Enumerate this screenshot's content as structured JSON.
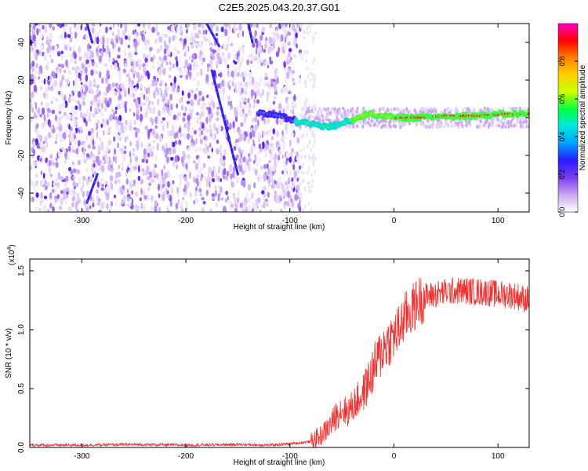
{
  "title": "C2E5.2025.043.20.37.G01",
  "chart_data": [
    {
      "type": "heatmap",
      "xlabel": "Height of straight line (km)",
      "ylabel": "Frequency (Hz)",
      "xlim": [
        -350,
        130
      ],
      "ylim": [
        -50,
        50
      ],
      "xticks": [
        -300,
        -200,
        -100,
        0,
        100
      ],
      "yticks": [
        -40,
        -20,
        0,
        20,
        40
      ],
      "colorbar": {
        "label": "Normalized spectral amplitude",
        "range": [
          0.0,
          1.0
        ],
        "ticks": [
          "0.0",
          "0.2",
          "0.4",
          "0.6",
          "0.8"
        ],
        "tick_values": [
          0.0,
          0.2,
          0.4,
          0.6,
          0.8
        ],
        "colors": [
          "#ffffff",
          "#c9a8f0",
          "#7a3cf0",
          "#2a1aff",
          "#00a0ff",
          "#00e8e0",
          "#00ff40",
          "#c8ff00",
          "#ffd000",
          "#ff8000",
          "#ff0000",
          "#ff00c0"
        ]
      },
      "signal_track": {
        "description_free": true,
        "x": [
          -130,
          -110,
          -95,
          -80,
          -65,
          -55,
          -45,
          -35,
          -25,
          -10,
          0,
          20,
          50,
          80,
          110,
          130
        ],
        "y": [
          3,
          1,
          -2,
          -3,
          -5,
          -4,
          -2,
          0,
          2,
          1,
          0,
          0,
          1,
          1,
          2,
          2
        ]
      },
      "noise_region": {
        "x_end": -90
      },
      "streaks": [
        {
          "x": [
            -295,
            -285
          ],
          "y": [
            -45,
            -30
          ]
        },
        {
          "x": [
            -175,
            -150
          ],
          "y": [
            25,
            -30
          ]
        },
        {
          "x": [
            -180,
            -168
          ],
          "y": [
            50,
            38
          ]
        },
        {
          "x": [
            -295,
            -290
          ],
          "y": [
            50,
            40
          ]
        },
        {
          "x": [
            -140,
            -136
          ],
          "y": [
            50,
            40
          ]
        }
      ]
    },
    {
      "type": "line",
      "xlabel": "Height of straight line (km)",
      "ylabel": "SNR (10 * v/v)",
      "multiplier_label": "(x10",
      "multiplier_exp": "4",
      "multiplier_close": ")",
      "xlim": [
        -350,
        130
      ],
      "ylim": [
        0,
        1.6
      ],
      "xticks": [
        -300,
        -200,
        -100,
        0,
        100
      ],
      "yticks": [
        "0.0",
        "0.5",
        "1.0",
        "1.5"
      ],
      "ytick_values": [
        0.0,
        0.5,
        1.0,
        1.5
      ],
      "color": "#ee3333",
      "series": [
        {
          "x": [
            -350,
            -300,
            -250,
            -200,
            -150,
            -120,
            -100,
            -80,
            -70,
            -60,
            -55,
            -50,
            -45,
            -40,
            -35,
            -30,
            -25,
            -20,
            -15,
            -10,
            -5,
            0,
            5,
            10,
            15,
            20,
            25,
            30,
            40,
            50,
            60,
            70,
            80,
            90,
            100,
            110,
            120,
            130
          ],
          "y": [
            0.02,
            0.02,
            0.025,
            0.02,
            0.025,
            0.02,
            0.03,
            0.05,
            0.1,
            0.2,
            0.28,
            0.33,
            0.3,
            0.35,
            0.4,
            0.45,
            0.55,
            0.65,
            0.75,
            0.85,
            0.9,
            0.95,
            1.0,
            1.1,
            1.15,
            1.2,
            1.25,
            1.28,
            1.3,
            1.32,
            1.33,
            1.33,
            1.32,
            1.32,
            1.3,
            1.3,
            1.28,
            1.25
          ]
        }
      ]
    }
  ]
}
